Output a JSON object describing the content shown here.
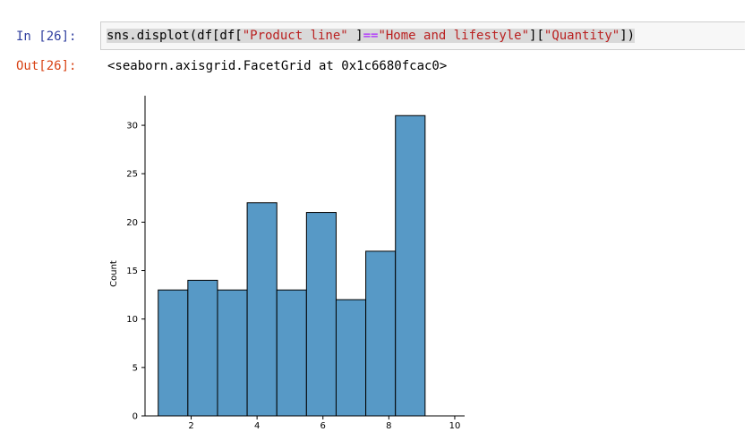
{
  "input_cell": {
    "prompt": "In [26]:",
    "code_prefix": "sns.displot(df[df[",
    "code_str1": "\"Product line\"",
    "code_mid": " ]",
    "code_op": "==",
    "code_str2": "\"Home and lifestyle\"",
    "code_mid2": "][",
    "code_str3": "\"Quantity\"",
    "code_suffix": "])"
  },
  "output_cell": {
    "prompt": "Out[26]:",
    "text": "<seaborn.axisgrid.FacetGrid at 0x1c6680fcac0>"
  },
  "colors": {
    "bar_fill": "#5799c6",
    "bar_stroke": "#000000",
    "in_prompt": "#303F9F",
    "out_prompt": "#D84315"
  },
  "chart_data": {
    "type": "bar",
    "ylabel": "Count",
    "xlabel": "",
    "bins": [
      {
        "x0": 1.0,
        "x1": 1.9,
        "count": 13
      },
      {
        "x0": 1.9,
        "x1": 2.8,
        "count": 14
      },
      {
        "x0": 2.8,
        "x1": 3.7,
        "count": 13
      },
      {
        "x0": 3.7,
        "x1": 4.6,
        "count": 22
      },
      {
        "x0": 4.6,
        "x1": 5.5,
        "count": 13
      },
      {
        "x0": 5.5,
        "x1": 6.4,
        "count": 21
      },
      {
        "x0": 6.4,
        "x1": 7.3,
        "count": 12
      },
      {
        "x0": 7.3,
        "x1": 8.2,
        "count": 17
      },
      {
        "x0": 8.2,
        "x1": 9.1,
        "count": 31
      }
    ],
    "xticks": [
      2,
      4,
      6,
      8,
      10
    ],
    "yticks": [
      0,
      5,
      10,
      15,
      20,
      25,
      30
    ],
    "xlim": [
      0.6,
      10.3
    ],
    "ylim": [
      0,
      32.5
    ],
    "grid": false
  }
}
